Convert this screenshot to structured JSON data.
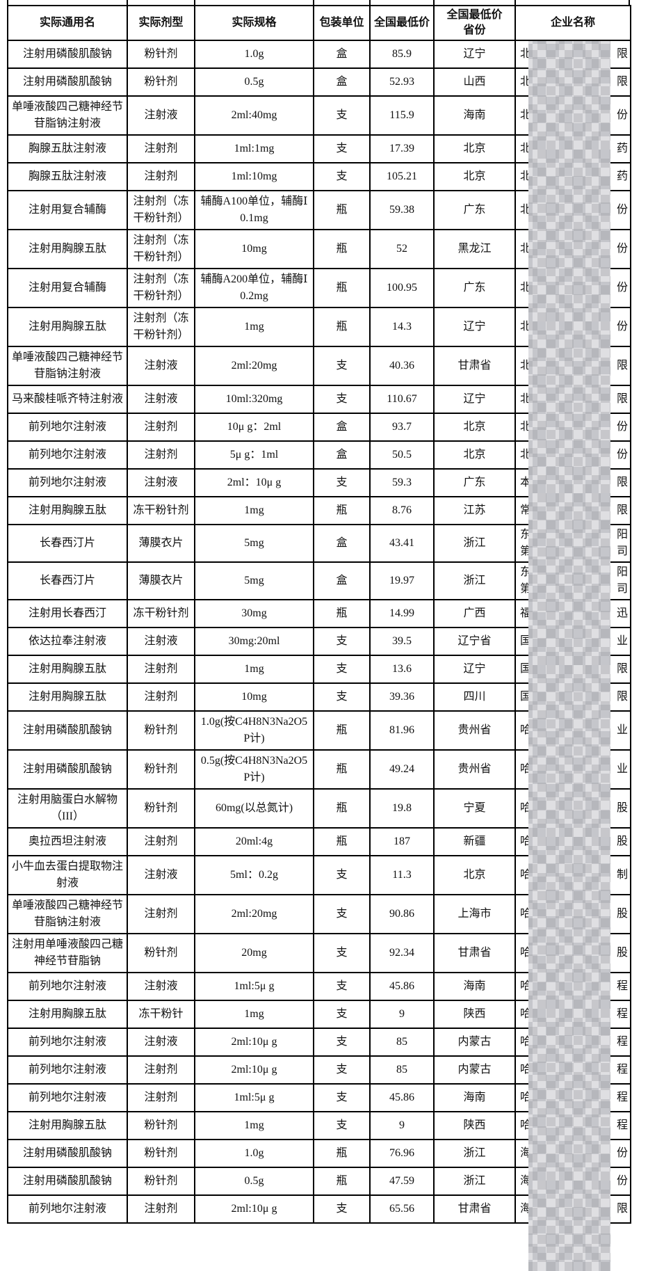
{
  "colors": {
    "border": "#000000",
    "text": "#111111",
    "mosaic_dark": "#c7c7cb",
    "mosaic_light": "#dfdfe2",
    "background": "#ffffff"
  },
  "table": {
    "headers": [
      "实际通用名",
      "实际剂型",
      "实际规格",
      "包装单位",
      "全国最低价",
      "全国最低价\n省份",
      "企业名称"
    ],
    "rows": [
      {
        "generic_name": "注射用磷酸肌酸钠",
        "dosage_form": "粉针剂",
        "spec": "1.0g",
        "unit": "盒",
        "lowest_price": "85.9",
        "province": "辽宁",
        "company_redacted": [
          [
            "北",
            "限"
          ]
        ]
      },
      {
        "generic_name": "注射用磷酸肌酸钠",
        "dosage_form": "粉针剂",
        "spec": "0.5g",
        "unit": "盒",
        "lowest_price": "52.93",
        "province": "山西",
        "company_redacted": [
          [
            "北",
            "限"
          ]
        ]
      },
      {
        "generic_name": "单唾液酸四己糖神经节苷脂钠注射液",
        "dosage_form": "注射液",
        "spec": "2ml:40mg",
        "unit": "支",
        "lowest_price": "115.9",
        "province": "海南",
        "company_redacted": [
          [
            "北",
            "份"
          ]
        ]
      },
      {
        "generic_name": "胸腺五肽注射液",
        "dosage_form": "注射剂",
        "spec": "1ml:1mg",
        "unit": "支",
        "lowest_price": "17.39",
        "province": "北京",
        "company_redacted": [
          [
            "北",
            "药"
          ]
        ]
      },
      {
        "generic_name": "胸腺五肽注射液",
        "dosage_form": "注射剂",
        "spec": "1ml:10mg",
        "unit": "支",
        "lowest_price": "105.21",
        "province": "北京",
        "company_redacted": [
          [
            "北",
            "药"
          ]
        ]
      },
      {
        "generic_name": "注射用复合辅酶",
        "dosage_form": "注射剂（冻干粉针剂）",
        "spec": "辅酶A100单位，辅酶Ⅰ0.1mg",
        "unit": "瓶",
        "lowest_price": "59.38",
        "province": "广东",
        "company_redacted": [
          [
            "北",
            "份"
          ]
        ]
      },
      {
        "generic_name": "注射用胸腺五肽",
        "dosage_form": "注射剂（冻干粉针剂）",
        "spec": "10mg",
        "unit": "瓶",
        "lowest_price": "52",
        "province": "黑龙江",
        "company_redacted": [
          [
            "北",
            "份"
          ]
        ]
      },
      {
        "generic_name": "注射用复合辅酶",
        "dosage_form": "注射剂（冻干粉针剂）",
        "spec": "辅酶A200单位，辅酶Ⅰ0.2mg",
        "unit": "瓶",
        "lowest_price": "100.95",
        "province": "广东",
        "company_redacted": [
          [
            "北",
            "份"
          ]
        ]
      },
      {
        "generic_name": "注射用胸腺五肽",
        "dosage_form": "注射剂（冻干粉针剂）",
        "spec": "1mg",
        "unit": "瓶",
        "lowest_price": "14.3",
        "province": "辽宁",
        "company_redacted": [
          [
            "北",
            "份"
          ]
        ]
      },
      {
        "generic_name": "单唾液酸四己糖神经节苷脂钠注射液",
        "dosage_form": "注射液",
        "spec": "2ml:20mg",
        "unit": "支",
        "lowest_price": "40.36",
        "province": "甘肃省",
        "company_redacted": [
          [
            "北",
            "限"
          ]
        ]
      },
      {
        "generic_name": "马来酸桂哌齐特注射液",
        "dosage_form": "注射液",
        "spec": "10ml:320mg",
        "unit": "支",
        "lowest_price": "110.67",
        "province": "辽宁",
        "company_redacted": [
          [
            "北",
            "限"
          ]
        ]
      },
      {
        "generic_name": "前列地尔注射液",
        "dosage_form": "注射剂",
        "spec": "10μ g：2ml",
        "unit": "盒",
        "lowest_price": "93.7",
        "province": "北京",
        "company_redacted": [
          [
            "北",
            "份"
          ]
        ]
      },
      {
        "generic_name": "前列地尔注射液",
        "dosage_form": "注射剂",
        "spec": "5μ g：1ml",
        "unit": "盒",
        "lowest_price": "50.5",
        "province": "北京",
        "company_redacted": [
          [
            "北",
            "份"
          ]
        ]
      },
      {
        "generic_name": "前列地尔注射液",
        "dosage_form": "注射液",
        "spec": "2ml：10μ g",
        "unit": "支",
        "lowest_price": "59.3",
        "province": "广东",
        "company_redacted": [
          [
            "本",
            "限"
          ]
        ]
      },
      {
        "generic_name": "注射用胸腺五肽",
        "dosage_form": "冻干粉针剂",
        "spec": "1mg",
        "unit": "瓶",
        "lowest_price": "8.76",
        "province": "江苏",
        "company_redacted": [
          [
            "常",
            "限"
          ]
        ]
      },
      {
        "generic_name": "长春西汀片",
        "dosage_form": "薄膜衣片",
        "spec": "5mg",
        "unit": "盒",
        "lowest_price": "43.41",
        "province": "浙江",
        "company_redacted": [
          [
            "东",
            "阳"
          ],
          [
            "第",
            "司"
          ]
        ]
      },
      {
        "generic_name": "长春西汀片",
        "dosage_form": "薄膜衣片",
        "spec": "5mg",
        "unit": "盒",
        "lowest_price": "19.97",
        "province": "浙江",
        "company_redacted": [
          [
            "东",
            "阳"
          ],
          [
            "第",
            "司"
          ]
        ]
      },
      {
        "generic_name": "注射用长春西汀",
        "dosage_form": "冻干粉针剂",
        "spec": "30mg",
        "unit": "瓶",
        "lowest_price": "14.99",
        "province": "广西",
        "company_redacted": [
          [
            "福",
            "迅"
          ]
        ]
      },
      {
        "generic_name": "依达拉奉注射液",
        "dosage_form": "注射液",
        "spec": "30mg:20ml",
        "unit": "支",
        "lowest_price": "39.5",
        "province": "辽宁省",
        "company_redacted": [
          [
            "国",
            "业"
          ]
        ]
      },
      {
        "generic_name": "注射用胸腺五肽",
        "dosage_form": "注射剂",
        "spec": "1mg",
        "unit": "支",
        "lowest_price": "13.6",
        "province": "辽宁",
        "company_redacted": [
          [
            "国",
            "限"
          ]
        ]
      },
      {
        "generic_name": "注射用胸腺五肽",
        "dosage_form": "注射剂",
        "spec": "10mg",
        "unit": "支",
        "lowest_price": "39.36",
        "province": "四川",
        "company_redacted": [
          [
            "国",
            "限"
          ]
        ]
      },
      {
        "generic_name": "注射用磷酸肌酸钠",
        "dosage_form": "粉针剂",
        "spec": "1.0g(按C4H8N3Na2O5P计)",
        "unit": "瓶",
        "lowest_price": "81.96",
        "province": "贵州省",
        "company_redacted": [
          [
            "哈",
            "业"
          ]
        ]
      },
      {
        "generic_name": "注射用磷酸肌酸钠",
        "dosage_form": "粉针剂",
        "spec": "0.5g(按C4H8N3Na2O5P计)",
        "unit": "瓶",
        "lowest_price": "49.24",
        "province": "贵州省",
        "company_redacted": [
          [
            "哈",
            "业"
          ]
        ]
      },
      {
        "generic_name": "注射用脑蛋白水解物（III）",
        "dosage_form": "粉针剂",
        "spec": "60mg(以总氮计)",
        "unit": "瓶",
        "lowest_price": "19.8",
        "province": "宁夏",
        "company_redacted": [
          [
            "哈",
            "股"
          ]
        ]
      },
      {
        "generic_name": "奥拉西坦注射液",
        "dosage_form": "注射剂",
        "spec": "20ml:4g",
        "unit": "瓶",
        "lowest_price": "187",
        "province": "新疆",
        "company_redacted": [
          [
            "哈",
            "股"
          ]
        ]
      },
      {
        "generic_name": "小牛血去蛋白提取物注射液",
        "dosage_form": "注射液",
        "spec": "5ml：0.2g",
        "unit": "支",
        "lowest_price": "11.3",
        "province": "北京",
        "company_redacted": [
          [
            "哈",
            "制"
          ]
        ]
      },
      {
        "generic_name": "单唾液酸四己糖神经节苷脂钠注射液",
        "dosage_form": "注射剂",
        "spec": "2ml:20mg",
        "unit": "支",
        "lowest_price": "90.86",
        "province": "上海市",
        "company_redacted": [
          [
            "哈",
            "股"
          ]
        ]
      },
      {
        "generic_name": "注射用单唾液酸四己糖神经节苷脂钠",
        "dosage_form": "粉针剂",
        "spec": "20mg",
        "unit": "支",
        "lowest_price": "92.34",
        "province": "甘肃省",
        "company_redacted": [
          [
            "哈",
            "股"
          ]
        ]
      },
      {
        "generic_name": "前列地尔注射液",
        "dosage_form": "注射液",
        "spec": "1ml:5μ g",
        "unit": "支",
        "lowest_price": "45.86",
        "province": "海南",
        "company_redacted": [
          [
            "哈",
            "程"
          ]
        ]
      },
      {
        "generic_name": "注射用胸腺五肽",
        "dosage_form": "冻干粉针",
        "spec": "1mg",
        "unit": "支",
        "lowest_price": "9",
        "province": "陕西",
        "company_redacted": [
          [
            "哈",
            "程"
          ]
        ]
      },
      {
        "generic_name": "前列地尔注射液",
        "dosage_form": "注射液",
        "spec": "2ml:10μ g",
        "unit": "支",
        "lowest_price": "85",
        "province": "内蒙古",
        "company_redacted": [
          [
            "哈",
            "程"
          ]
        ]
      },
      {
        "generic_name": "前列地尔注射液",
        "dosage_form": "注射剂",
        "spec": "2ml:10μ g",
        "unit": "支",
        "lowest_price": "85",
        "province": "内蒙古",
        "company_redacted": [
          [
            "哈",
            "程"
          ]
        ]
      },
      {
        "generic_name": "前列地尔注射液",
        "dosage_form": "注射剂",
        "spec": "1ml:5μ g",
        "unit": "支",
        "lowest_price": "45.86",
        "province": "海南",
        "company_redacted": [
          [
            "哈",
            "程"
          ]
        ]
      },
      {
        "generic_name": "注射用胸腺五肽",
        "dosage_form": "粉针剂",
        "spec": "1mg",
        "unit": "支",
        "lowest_price": "9",
        "province": "陕西",
        "company_redacted": [
          [
            "哈",
            "程"
          ]
        ]
      },
      {
        "generic_name": "注射用磷酸肌酸钠",
        "dosage_form": "粉针剂",
        "spec": "1.0g",
        "unit": "瓶",
        "lowest_price": "76.96",
        "province": "浙江",
        "company_redacted": [
          [
            "海",
            "份"
          ]
        ]
      },
      {
        "generic_name": "注射用磷酸肌酸钠",
        "dosage_form": "粉针剂",
        "spec": "0.5g",
        "unit": "瓶",
        "lowest_price": "47.59",
        "province": "浙江",
        "company_redacted": [
          [
            "海",
            "份"
          ]
        ]
      },
      {
        "generic_name": "前列地尔注射液",
        "dosage_form": "注射剂",
        "spec": "2ml:10μ g",
        "unit": "支",
        "lowest_price": "65.56",
        "province": "甘肃省",
        "company_redacted": [
          [
            "海",
            "限"
          ]
        ]
      }
    ]
  }
}
